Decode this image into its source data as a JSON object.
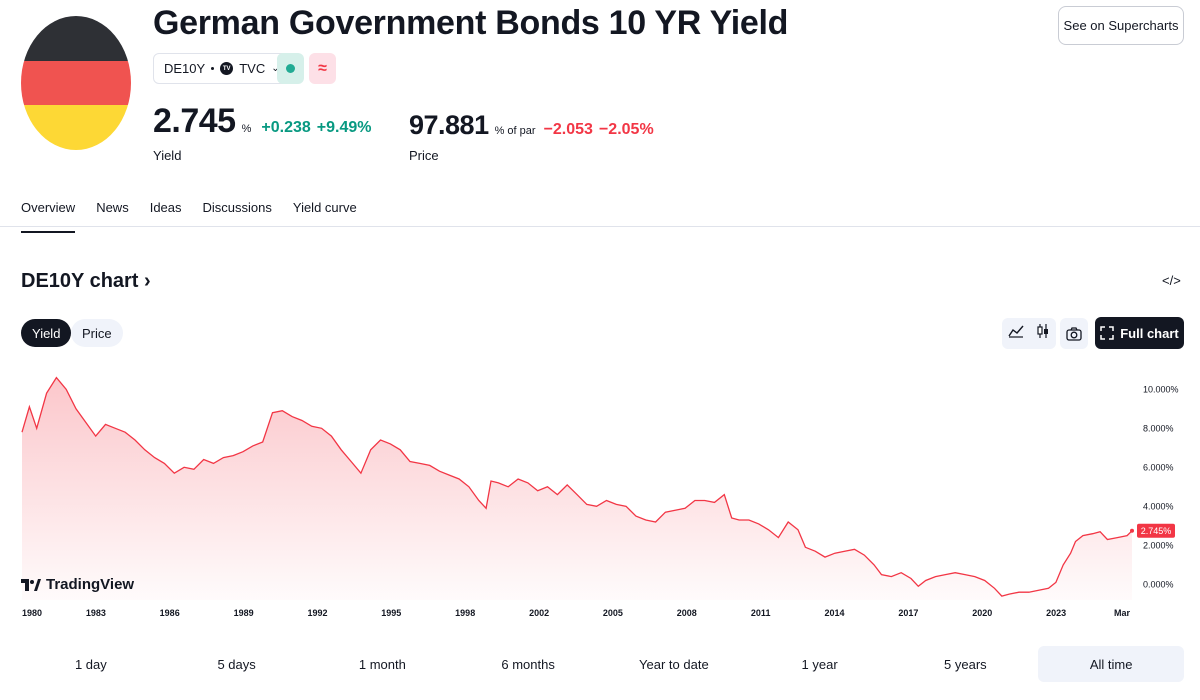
{
  "header": {
    "title": "German Government Bonds 10 YR Yield",
    "symbol": "DE10Y",
    "exchange": "TVC",
    "super_button": "See on Supercharts"
  },
  "yield": {
    "value": "2.745",
    "unit": "%",
    "change": "+0.238",
    "change_pct": "+9.49%",
    "label": "Yield"
  },
  "price": {
    "value": "97.881",
    "unit": "% of par",
    "change": "−2.053",
    "change_pct": "−2.05%",
    "label": "Price"
  },
  "tabs": [
    "Overview",
    "News",
    "Ideas",
    "Discussions",
    "Yield curve"
  ],
  "chart_section": {
    "heading": "DE10Y chart",
    "segments": [
      "Yield",
      "Price"
    ],
    "full_chart_label": "Full chart",
    "logo_text": "TradingView"
  },
  "ranges": [
    "1 day",
    "5 days",
    "1 month",
    "6 months",
    "Year to date",
    "1 year",
    "5 years",
    "All time"
  ],
  "colors": {
    "line": "#f23645",
    "up": "#089981",
    "down": "#f23645",
    "flag_black": "#2e3035",
    "flag_red": "#f05350",
    "flag_gold": "#fdd835"
  },
  "chart_data": {
    "type": "area",
    "x": [
      1980.0,
      1980.3,
      1980.6,
      1981.0,
      1981.4,
      1981.8,
      1982.2,
      1982.6,
      1983.0,
      1983.4,
      1983.8,
      1984.2,
      1984.6,
      1985.0,
      1985.4,
      1985.8,
      1986.2,
      1986.6,
      1987.0,
      1987.4,
      1987.8,
      1988.2,
      1988.6,
      1989.0,
      1989.4,
      1989.8,
      1990.2,
      1990.6,
      1991.0,
      1991.4,
      1991.8,
      1992.2,
      1992.6,
      1993.0,
      1993.4,
      1993.8,
      1994.2,
      1994.6,
      1995.0,
      1995.4,
      1995.8,
      1996.2,
      1996.6,
      1997.0,
      1997.4,
      1997.8,
      1998.2,
      1998.6,
      1998.9,
      1999.1,
      1999.4,
      1999.8,
      2000.2,
      2000.6,
      2001.0,
      2001.4,
      2001.8,
      2002.2,
      2002.6,
      2003.0,
      2003.4,
      2003.8,
      2004.2,
      2004.6,
      2005.0,
      2005.4,
      2005.8,
      2006.2,
      2006.6,
      2007.0,
      2007.4,
      2007.8,
      2008.2,
      2008.6,
      2008.9,
      2009.2,
      2009.6,
      2010.0,
      2010.4,
      2010.8,
      2011.2,
      2011.6,
      2011.9,
      2012.3,
      2012.7,
      2013.1,
      2013.5,
      2013.9,
      2014.3,
      2014.7,
      2015.0,
      2015.4,
      2015.8,
      2016.2,
      2016.5,
      2016.8,
      2017.2,
      2017.6,
      2018.0,
      2018.4,
      2018.8,
      2019.2,
      2019.6,
      2019.9,
      2020.2,
      2020.6,
      2021.0,
      2021.4,
      2021.8,
      2022.1,
      2022.4,
      2022.7,
      2022.9,
      2023.2,
      2023.6,
      2023.9,
      2024.2,
      2024.6,
      2025.0,
      2025.2
    ],
    "y": [
      7.8,
      9.1,
      8.0,
      9.8,
      10.6,
      10.0,
      9.0,
      8.3,
      7.6,
      8.2,
      8.0,
      7.8,
      7.4,
      6.9,
      6.5,
      6.2,
      5.7,
      6.0,
      5.9,
      6.4,
      6.2,
      6.5,
      6.6,
      6.8,
      7.1,
      7.3,
      8.8,
      8.9,
      8.6,
      8.4,
      8.1,
      8.0,
      7.6,
      6.9,
      6.3,
      5.7,
      6.9,
      7.4,
      7.2,
      6.9,
      6.3,
      6.2,
      6.1,
      5.8,
      5.6,
      5.4,
      5.0,
      4.3,
      3.9,
      5.3,
      5.2,
      5.0,
      5.4,
      5.2,
      4.8,
      5.0,
      4.6,
      5.1,
      4.6,
      4.1,
      4.0,
      4.3,
      4.1,
      4.0,
      3.5,
      3.3,
      3.2,
      3.7,
      3.8,
      3.9,
      4.3,
      4.3,
      4.2,
      4.6,
      3.4,
      3.3,
      3.3,
      3.1,
      2.8,
      2.4,
      3.2,
      2.8,
      1.9,
      1.7,
      1.4,
      1.6,
      1.7,
      1.8,
      1.5,
      1.0,
      0.5,
      0.4,
      0.6,
      0.3,
      -0.1,
      0.2,
      0.4,
      0.5,
      0.6,
      0.5,
      0.4,
      0.2,
      -0.2,
      -0.6,
      -0.5,
      -0.4,
      -0.4,
      -0.3,
      -0.2,
      0.1,
      1.0,
      1.6,
      2.2,
      2.5,
      2.6,
      2.7,
      2.3,
      2.4,
      2.5,
      2.745
    ],
    "x_tick_labels": [
      "1980",
      "1983",
      "1986",
      "1989",
      "1992",
      "1995",
      "1998",
      "2002",
      "2005",
      "2008",
      "2011",
      "2014",
      "2017",
      "2020",
      "2023",
      "Mar"
    ],
    "y_tick_labels": [
      "0.000%",
      "2.000%",
      "4.000%",
      "6.000%",
      "8.000%",
      "10.000%"
    ],
    "y_ticks": [
      0,
      2,
      4,
      6,
      8,
      10
    ],
    "ylim": [
      -0.8,
      11.5
    ],
    "last_value_label": "2.745%",
    "grid": false
  }
}
